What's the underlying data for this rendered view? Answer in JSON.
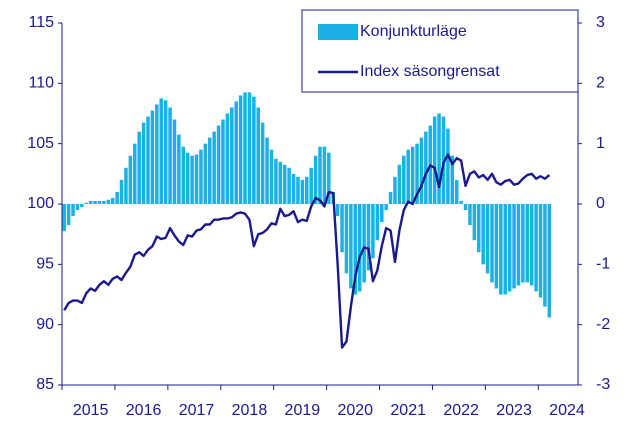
{
  "chart_data": {
    "type": "bar",
    "categories": [
      null,
      null,
      null,
      null,
      null,
      null,
      "2015",
      null,
      null,
      null,
      null,
      null,
      null,
      null,
      null,
      null,
      null,
      null,
      "2016",
      null,
      null,
      null,
      null,
      null,
      null,
      null,
      null,
      null,
      null,
      null,
      "2017",
      null,
      null,
      null,
      null,
      null,
      null,
      null,
      null,
      null,
      null,
      null,
      "2018",
      null,
      null,
      null,
      null,
      null,
      null,
      null,
      null,
      null,
      null,
      null,
      "2019",
      null,
      null,
      null,
      null,
      null,
      null,
      null,
      null,
      null,
      null,
      null,
      "2020",
      null,
      null,
      null,
      null,
      null,
      null,
      null,
      null,
      null,
      null,
      null,
      "2021",
      null,
      null,
      null,
      null,
      null,
      null,
      null,
      null,
      null,
      null,
      null,
      "2022",
      null,
      null,
      null,
      null,
      null,
      null,
      null,
      null,
      null,
      null,
      null,
      "2023",
      null,
      null,
      null,
      null,
      null,
      null,
      null,
      null,
      null,
      null,
      null,
      "2024",
      null,
      null
    ],
    "series": [
      {
        "name": "Konjunkturläge",
        "type": "bar",
        "axis": "y2",
        "color": "#1cb1e6",
        "values": [
          -0.45,
          -0.35,
          -0.2,
          -0.1,
          -0.05,
          0.02,
          0.05,
          0.05,
          0.05,
          0.05,
          0.07,
          0.1,
          0.2,
          0.4,
          0.6,
          0.8,
          1.0,
          1.2,
          1.35,
          1.45,
          1.55,
          1.65,
          1.75,
          1.72,
          1.6,
          1.4,
          1.15,
          0.95,
          0.85,
          0.8,
          0.82,
          0.9,
          1.0,
          1.1,
          1.2,
          1.3,
          1.4,
          1.5,
          1.6,
          1.7,
          1.8,
          1.85,
          1.85,
          1.78,
          1.6,
          1.35,
          1.1,
          0.9,
          0.75,
          0.7,
          0.65,
          0.6,
          0.5,
          0.45,
          0.4,
          0.45,
          0.6,
          0.8,
          0.95,
          0.95,
          0.85,
          0.2,
          -0.2,
          -0.8,
          -1.15,
          -1.4,
          -1.5,
          -1.45,
          -1.3,
          -1.1,
          -0.9,
          -0.6,
          -0.3,
          -0.1,
          0.2,
          0.45,
          0.65,
          0.8,
          0.9,
          0.95,
          1.0,
          1.1,
          1.2,
          1.3,
          1.45,
          1.5,
          1.45,
          1.25,
          0.8,
          0.4,
          0.05,
          -0.1,
          -0.35,
          -0.6,
          -0.8,
          -1.0,
          -1.15,
          -1.3,
          -1.4,
          -1.5,
          -1.5,
          -1.45,
          -1.4,
          -1.35,
          -1.3,
          -1.3,
          -1.35,
          -1.45,
          -1.55,
          -1.7,
          -1.88,
          null,
          null,
          null,
          null,
          null,
          null
        ]
      },
      {
        "name": "Index säsongrensat",
        "type": "line",
        "axis": "y",
        "color": "#1a1a8e",
        "values": [
          91.2,
          91.8,
          92.0,
          92.0,
          91.8,
          92.6,
          93.0,
          92.8,
          93.3,
          93.6,
          93.3,
          93.8,
          94.0,
          93.7,
          94.3,
          94.8,
          95.8,
          96.0,
          95.7,
          96.2,
          96.5,
          97.3,
          97.1,
          97.2,
          98.0,
          97.4,
          96.9,
          96.6,
          97.4,
          97.3,
          97.8,
          97.9,
          98.3,
          98.3,
          98.7,
          98.7,
          98.8,
          98.8,
          98.9,
          99.2,
          99.3,
          99.2,
          98.7,
          96.5,
          97.5,
          97.6,
          97.9,
          98.4,
          98.3,
          99.6,
          99.0,
          99.1,
          99.4,
          98.5,
          98.7,
          98.6,
          99.8,
          100.5,
          100.3,
          99.8,
          101.0,
          100.9,
          95.0,
          88.1,
          88.6,
          91.5,
          94.0,
          95.6,
          96.4,
          96.3,
          93.6,
          94.5,
          96.5,
          98.0,
          97.8,
          95.2,
          97.8,
          99.5,
          100.2,
          100.0,
          100.8,
          101.5,
          102.5,
          103.2,
          103.0,
          101.4,
          103.4,
          104.1,
          103.3,
          103.8,
          103.6,
          101.5,
          102.5,
          102.7,
          102.2,
          102.4,
          102.0,
          102.5,
          101.8,
          101.6,
          101.9,
          102.0,
          101.6,
          101.7,
          102.1,
          102.4,
          102.5,
          102.1,
          102.3,
          102.1,
          102.4,
          null,
          null,
          null,
          null,
          null,
          null
        ]
      }
    ],
    "ylim": [
      85,
      115
    ],
    "yticks": [
      85,
      90,
      95,
      100,
      105,
      110,
      115
    ],
    "y2lim": [
      -3,
      3
    ],
    "y2ticks": [
      -3,
      -2,
      -1,
      0,
      1,
      2,
      3
    ],
    "legend": "upper right"
  }
}
